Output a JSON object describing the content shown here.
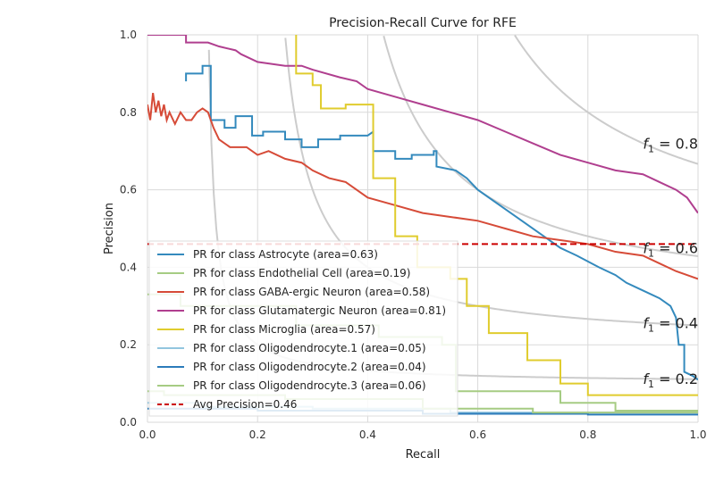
{
  "chart_data": {
    "type": "line",
    "title": "Precision-Recall Curve for RFE",
    "xlabel": "Recall",
    "ylabel": "Precision",
    "xlim": [
      0,
      1
    ],
    "ylim": [
      0,
      1
    ],
    "xticks": [
      "0.0",
      "0.2",
      "0.4",
      "0.6",
      "0.8",
      "1.0"
    ],
    "yticks": [
      "0.0",
      "0.2",
      "0.4",
      "0.6",
      "0.8",
      "1.0"
    ],
    "grid": true,
    "legend_position": "lower-left",
    "iso_f1": [
      {
        "f": 0.2,
        "label": "f1 = 0.2"
      },
      {
        "f": 0.4,
        "label": "f1 = 0.4"
      },
      {
        "f": 0.6,
        "label": "f1 = 0.6"
      },
      {
        "f": 0.8,
        "label": "f1 = 0.8"
      }
    ],
    "avg_precision": {
      "value": 0.46,
      "label": "Avg Precision=0.46",
      "color": "#cc0000"
    },
    "series": [
      {
        "name": "PR for class Astrocyte (area=0.63)",
        "color": "#348abd",
        "points": [
          [
            0.07,
            0.88
          ],
          [
            0.07,
            0.9
          ],
          [
            0.1,
            0.9
          ],
          [
            0.1,
            0.92
          ],
          [
            0.115,
            0.92
          ],
          [
            0.115,
            0.78
          ],
          [
            0.14,
            0.78
          ],
          [
            0.14,
            0.76
          ],
          [
            0.16,
            0.76
          ],
          [
            0.16,
            0.79
          ],
          [
            0.19,
            0.79
          ],
          [
            0.19,
            0.74
          ],
          [
            0.21,
            0.74
          ],
          [
            0.21,
            0.75
          ],
          [
            0.25,
            0.75
          ],
          [
            0.25,
            0.73
          ],
          [
            0.28,
            0.73
          ],
          [
            0.28,
            0.71
          ],
          [
            0.31,
            0.71
          ],
          [
            0.31,
            0.73
          ],
          [
            0.35,
            0.73
          ],
          [
            0.35,
            0.74
          ],
          [
            0.38,
            0.74
          ],
          [
            0.38,
            0.74
          ],
          [
            0.4,
            0.74
          ],
          [
            0.41,
            0.75
          ],
          [
            0.41,
            0.7
          ],
          [
            0.45,
            0.7
          ],
          [
            0.45,
            0.68
          ],
          [
            0.48,
            0.68
          ],
          [
            0.48,
            0.69
          ],
          [
            0.52,
            0.69
          ],
          [
            0.52,
            0.7
          ],
          [
            0.525,
            0.7
          ],
          [
            0.525,
            0.66
          ],
          [
            0.56,
            0.65
          ],
          [
            0.58,
            0.63
          ],
          [
            0.6,
            0.6
          ],
          [
            0.62,
            0.58
          ],
          [
            0.65,
            0.55
          ],
          [
            0.68,
            0.52
          ],
          [
            0.72,
            0.48
          ],
          [
            0.75,
            0.45
          ],
          [
            0.78,
            0.43
          ],
          [
            0.82,
            0.4
          ],
          [
            0.85,
            0.38
          ],
          [
            0.87,
            0.36
          ],
          [
            0.9,
            0.34
          ],
          [
            0.93,
            0.32
          ],
          [
            0.95,
            0.3
          ],
          [
            0.96,
            0.27
          ],
          [
            0.965,
            0.2
          ],
          [
            0.975,
            0.2
          ],
          [
            0.975,
            0.13
          ],
          [
            0.99,
            0.12
          ],
          [
            1.0,
            0.11
          ]
        ]
      },
      {
        "name": "PR for class Endothelial Cell (area=0.19)",
        "color": "#a6cc83",
        "points": [
          [
            0.0,
            0.33
          ],
          [
            0.06,
            0.33
          ],
          [
            0.06,
            0.3
          ],
          [
            0.27,
            0.3
          ],
          [
            0.27,
            0.25
          ],
          [
            0.42,
            0.25
          ],
          [
            0.42,
            0.22
          ],
          [
            0.535,
            0.22
          ],
          [
            0.535,
            0.2
          ],
          [
            0.56,
            0.2
          ],
          [
            0.56,
            0.08
          ],
          [
            0.75,
            0.08
          ],
          [
            0.75,
            0.05
          ],
          [
            0.85,
            0.05
          ],
          [
            0.85,
            0.03
          ],
          [
            1.0,
            0.03
          ]
        ]
      },
      {
        "name": "PR for class GABA-ergic Neuron (area=0.58)",
        "color": "#d64b38",
        "points": [
          [
            0.0,
            0.82
          ],
          [
            0.005,
            0.78
          ],
          [
            0.01,
            0.85
          ],
          [
            0.015,
            0.8
          ],
          [
            0.02,
            0.83
          ],
          [
            0.025,
            0.79
          ],
          [
            0.03,
            0.82
          ],
          [
            0.035,
            0.78
          ],
          [
            0.04,
            0.8
          ],
          [
            0.05,
            0.77
          ],
          [
            0.06,
            0.8
          ],
          [
            0.07,
            0.78
          ],
          [
            0.08,
            0.78
          ],
          [
            0.09,
            0.8
          ],
          [
            0.1,
            0.81
          ],
          [
            0.11,
            0.8
          ],
          [
            0.12,
            0.76
          ],
          [
            0.13,
            0.73
          ],
          [
            0.15,
            0.71
          ],
          [
            0.18,
            0.71
          ],
          [
            0.2,
            0.69
          ],
          [
            0.22,
            0.7
          ],
          [
            0.25,
            0.68
          ],
          [
            0.28,
            0.67
          ],
          [
            0.3,
            0.65
          ],
          [
            0.33,
            0.63
          ],
          [
            0.36,
            0.62
          ],
          [
            0.4,
            0.58
          ],
          [
            0.45,
            0.56
          ],
          [
            0.5,
            0.54
          ],
          [
            0.55,
            0.53
          ],
          [
            0.6,
            0.52
          ],
          [
            0.65,
            0.5
          ],
          [
            0.7,
            0.48
          ],
          [
            0.75,
            0.47
          ],
          [
            0.8,
            0.46
          ],
          [
            0.85,
            0.44
          ],
          [
            0.9,
            0.43
          ],
          [
            0.93,
            0.41
          ],
          [
            0.96,
            0.39
          ],
          [
            0.98,
            0.38
          ],
          [
            1.0,
            0.37
          ]
        ]
      },
      {
        "name": "PR for class Glutamatergic Neuron (area=0.81)",
        "color": "#b03f8f",
        "points": [
          [
            0.0,
            1.0
          ],
          [
            0.07,
            1.0
          ],
          [
            0.07,
            0.98
          ],
          [
            0.11,
            0.98
          ],
          [
            0.13,
            0.97
          ],
          [
            0.16,
            0.96
          ],
          [
            0.17,
            0.95
          ],
          [
            0.2,
            0.93
          ],
          [
            0.25,
            0.92
          ],
          [
            0.28,
            0.92
          ],
          [
            0.3,
            0.91
          ],
          [
            0.35,
            0.89
          ],
          [
            0.38,
            0.88
          ],
          [
            0.4,
            0.86
          ],
          [
            0.45,
            0.84
          ],
          [
            0.5,
            0.82
          ],
          [
            0.55,
            0.8
          ],
          [
            0.6,
            0.78
          ],
          [
            0.65,
            0.75
          ],
          [
            0.7,
            0.72
          ],
          [
            0.75,
            0.69
          ],
          [
            0.8,
            0.67
          ],
          [
            0.85,
            0.65
          ],
          [
            0.9,
            0.64
          ],
          [
            0.93,
            0.62
          ],
          [
            0.96,
            0.6
          ],
          [
            0.98,
            0.58
          ],
          [
            1.0,
            0.54
          ]
        ]
      },
      {
        "name": "PR for class Microglia (area=0.57)",
        "color": "#e0cc2e",
        "points": [
          [
            0.27,
            1.0
          ],
          [
            0.27,
            0.9
          ],
          [
            0.3,
            0.9
          ],
          [
            0.3,
            0.87
          ],
          [
            0.315,
            0.87
          ],
          [
            0.315,
            0.81
          ],
          [
            0.36,
            0.81
          ],
          [
            0.36,
            0.82
          ],
          [
            0.41,
            0.82
          ],
          [
            0.41,
            0.63
          ],
          [
            0.45,
            0.63
          ],
          [
            0.45,
            0.48
          ],
          [
            0.49,
            0.48
          ],
          [
            0.49,
            0.4
          ],
          [
            0.55,
            0.4
          ],
          [
            0.55,
            0.37
          ],
          [
            0.58,
            0.37
          ],
          [
            0.58,
            0.3
          ],
          [
            0.62,
            0.3
          ],
          [
            0.62,
            0.23
          ],
          [
            0.69,
            0.23
          ],
          [
            0.69,
            0.16
          ],
          [
            0.75,
            0.16
          ],
          [
            0.75,
            0.1
          ],
          [
            0.8,
            0.1
          ],
          [
            0.8,
            0.07
          ],
          [
            1.0,
            0.07
          ]
        ]
      },
      {
        "name": "PR for class Oligodendrocyte.1 (area=0.05)",
        "color": "#92c5de",
        "points": [
          [
            0.0,
            0.05
          ],
          [
            0.1,
            0.05
          ],
          [
            0.1,
            0.04
          ],
          [
            0.3,
            0.04
          ],
          [
            0.3,
            0.035
          ],
          [
            0.55,
            0.035
          ],
          [
            0.55,
            0.025
          ],
          [
            1.0,
            0.025
          ]
        ]
      },
      {
        "name": "PR for class Oligodendrocyte.2 (area=0.04)",
        "color": "#2b7bba",
        "points": [
          [
            0.0,
            0.035
          ],
          [
            0.2,
            0.035
          ],
          [
            0.2,
            0.03
          ],
          [
            0.5,
            0.03
          ],
          [
            0.5,
            0.022
          ],
          [
            0.8,
            0.022
          ],
          [
            0.8,
            0.02
          ],
          [
            1.0,
            0.02
          ]
        ]
      },
      {
        "name": "PR for class Oligodendrocyte.3 (area=0.06)",
        "color": "#a6cc83",
        "points": [
          [
            0.0,
            0.08
          ],
          [
            0.03,
            0.08
          ],
          [
            0.03,
            0.07
          ],
          [
            0.25,
            0.07
          ],
          [
            0.25,
            0.06
          ],
          [
            0.5,
            0.06
          ],
          [
            0.5,
            0.035
          ],
          [
            0.7,
            0.035
          ],
          [
            0.7,
            0.025
          ],
          [
            1.0,
            0.025
          ]
        ]
      }
    ]
  }
}
